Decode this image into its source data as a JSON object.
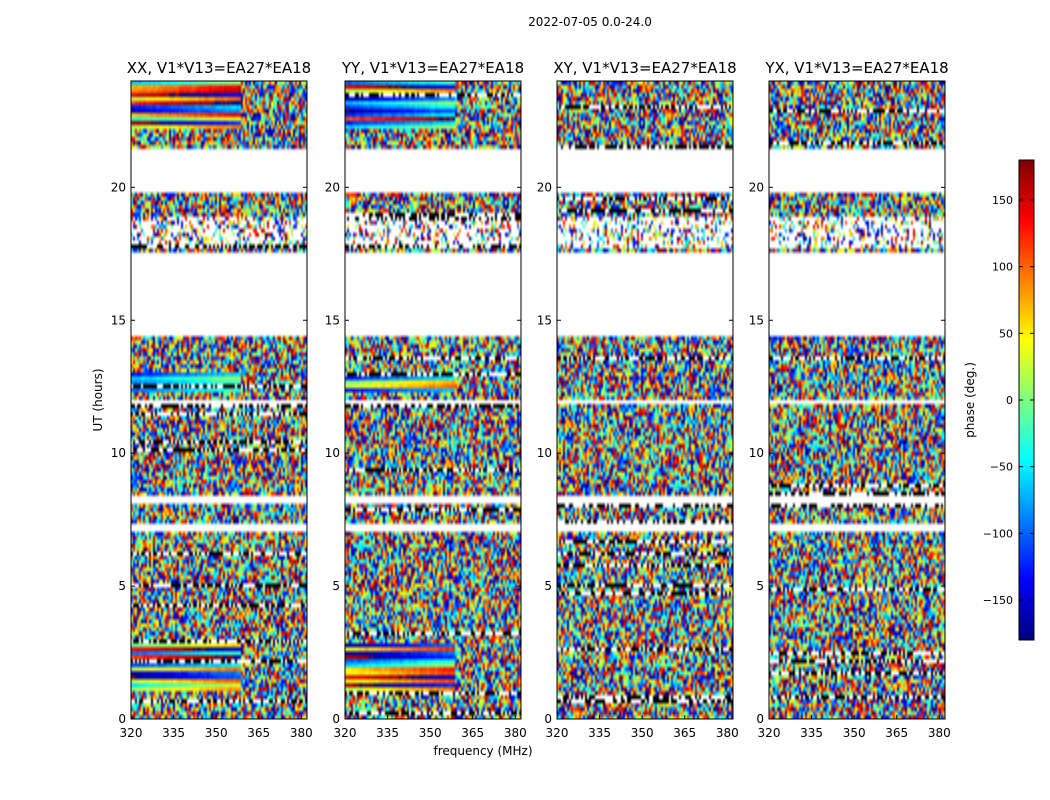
{
  "chart_data": {
    "type": "heatmap",
    "suptitle": "2022-07-05 0.0-24.0",
    "xlabel": "frequency (MHz)",
    "ylabel": "UT (hours)",
    "xlim": [
      320,
      382
    ],
    "ylim": [
      0,
      24
    ],
    "xticks": [
      320,
      335,
      350,
      365,
      380
    ],
    "yticks": [
      0,
      5,
      10,
      15,
      20
    ],
    "panels": [
      {
        "title": "XX, V1*V13=EA27*EA18",
        "correlation": "XX",
        "coherent_bands_ut": [
          [
            1.1,
            2.9
          ],
          [
            12.3,
            13.1
          ],
          [
            22.2,
            24.0
          ]
        ]
      },
      {
        "title": "YY, V1*V13=EA27*EA18",
        "correlation": "YY",
        "coherent_bands_ut": [
          [
            1.1,
            2.9
          ],
          [
            12.3,
            13.1
          ],
          [
            22.2,
            24.0
          ]
        ]
      },
      {
        "title": "XY, V1*V13=EA27*EA18",
        "correlation": "XY",
        "coherent_bands_ut": []
      },
      {
        "title": "YX, V1*V13=EA27*EA18",
        "correlation": "YX",
        "coherent_bands_ut": []
      }
    ],
    "data_gaps_ut": [
      [
        8.15,
        8.45
      ],
      [
        7.05,
        7.35
      ],
      [
        11.8,
        12.0
      ],
      [
        14.35,
        17.6
      ],
      [
        19.8,
        21.4
      ]
    ],
    "flagged_band_ut": [
      17.7,
      18.9
    ],
    "colorbar": {
      "label": "phase (deg.)",
      "range": [
        -180,
        180
      ],
      "ticks": [
        -150,
        -100,
        -50,
        0,
        50,
        100,
        150
      ],
      "colormap": "jet"
    }
  }
}
